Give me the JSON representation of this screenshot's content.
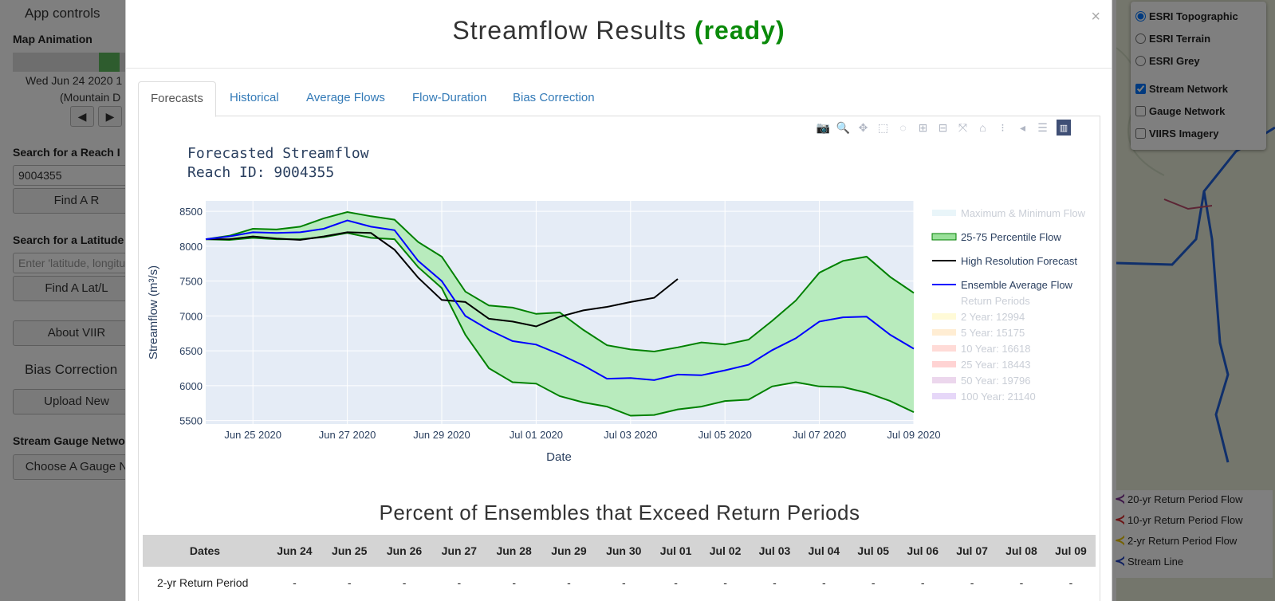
{
  "sidebar": {
    "app_controls": "App controls",
    "map_animation": "Map Animation",
    "anim_date": "Wed Jun 24 2020 1",
    "anim_tz": "(Mountain D",
    "search_reach_heading": "Search for a Reach I",
    "reach_value": "9004355",
    "find_reach_btn": "Find A R",
    "search_latlon_heading": "Search for a Latitude",
    "latlon_placeholder": "Enter 'latitude, longitu",
    "find_latlon_btn": "Find A Lat/L",
    "about_btn": "About VIIR",
    "bias_heading": "Bias Correction",
    "upload_btn": "Upload New",
    "gauge_heading": "Stream Gauge Netwo",
    "choose_gauge_btn": "Choose A Gauge N"
  },
  "layers": {
    "items": [
      {
        "label": "ESRI Topographic",
        "type": "radio",
        "checked": true
      },
      {
        "label": "ESRI Terrain",
        "type": "radio",
        "checked": false
      },
      {
        "label": "ESRI Grey",
        "type": "radio",
        "checked": false
      },
      {
        "label": "Stream Network",
        "type": "checkbox",
        "checked": true
      },
      {
        "label": "Gauge Network",
        "type": "checkbox",
        "checked": false
      },
      {
        "label": "VIIRS Imagery",
        "type": "checkbox",
        "checked": false
      }
    ]
  },
  "map_legend": {
    "items": [
      {
        "label": "20-yr Return Period Flow",
        "color": "#7b2c8f"
      },
      {
        "label": "10-yr Return Period Flow",
        "color": "#d62728"
      },
      {
        "label": "2-yr Return Period Flow",
        "color": "#e8c300"
      },
      {
        "label": "Stream Line",
        "color": "#1f3fbf"
      }
    ]
  },
  "modal": {
    "title": "Streamflow Results",
    "status": "(ready)",
    "close": "×",
    "tabs": [
      "Forecasts",
      "Historical",
      "Average Flows",
      "Flow-Duration",
      "Bias Correction"
    ],
    "active_tab": 0
  },
  "modebar_icons": [
    "camera-icon",
    "zoom-icon",
    "pan-icon",
    "box-select-icon",
    "lasso-icon",
    "zoom-in-icon",
    "zoom-out-icon",
    "autoscale-icon",
    "reset-axes-icon",
    "spike-lines-icon",
    "hover-closest-icon",
    "hover-compare-icon",
    "plotly-logo-icon"
  ],
  "chart_data": {
    "type": "area",
    "title": "Forecasted Streamflow",
    "subtitle": "Reach ID: 9004355",
    "xlabel": "Date",
    "ylabel": "Streamflow (m³/s)",
    "ylim": [
      5450,
      8650
    ],
    "xlim": [
      "2020-06-24T00:00",
      "2020-07-09T00:00"
    ],
    "x_tick_labels": [
      "Jun 25 2020",
      "Jun 27 2020",
      "Jun 29 2020",
      "Jul 01 2020",
      "Jul 03 2020",
      "Jul 05 2020",
      "Jul 07 2020",
      "Jul 09 2020"
    ],
    "y_ticks": [
      5500,
      6000,
      6500,
      7000,
      7500,
      8000,
      8500
    ],
    "grid": true,
    "legend_position": "right",
    "series": [
      {
        "name": "25-75 Percentile Flow",
        "color": "#008000",
        "fill": "#b8ebbd",
        "x": [
          "2020-06-24T00:00",
          "2020-06-24T12:00",
          "2020-06-25T00:00",
          "2020-06-25T12:00",
          "2020-06-26T00:00",
          "2020-06-26T12:00",
          "2020-06-27T00:00",
          "2020-06-27T12:00",
          "2020-06-28T00:00",
          "2020-06-28T12:00",
          "2020-06-29T00:00",
          "2020-06-29T12:00",
          "2020-06-30T00:00",
          "2020-06-30T12:00",
          "2020-07-01T00:00",
          "2020-07-01T12:00",
          "2020-07-02T00:00",
          "2020-07-02T12:00",
          "2020-07-03T00:00",
          "2020-07-03T12:00",
          "2020-07-04T00:00",
          "2020-07-04T12:00",
          "2020-07-05T00:00",
          "2020-07-05T12:00",
          "2020-07-06T00:00",
          "2020-07-06T12:00",
          "2020-07-07T00:00",
          "2020-07-07T12:00",
          "2020-07-08T00:00",
          "2020-07-08T12:00",
          "2020-07-09T00:00"
        ],
        "upper": [
          8100,
          8150,
          8250,
          8240,
          8280,
          8400,
          8490,
          8430,
          8380,
          8060,
          7850,
          7350,
          7150,
          7120,
          7030,
          7050,
          6800,
          6580,
          6520,
          6490,
          6550,
          6620,
          6590,
          6660,
          6930,
          7220,
          7620,
          7790,
          7850,
          7560,
          7330
        ],
        "lower": [
          8100,
          8090,
          8120,
          8100,
          8100,
          8130,
          8190,
          8120,
          8100,
          7700,
          7400,
          6730,
          6250,
          6050,
          6030,
          5850,
          5760,
          5700,
          5570,
          5580,
          5660,
          5700,
          5780,
          5800,
          5990,
          6050,
          5990,
          5980,
          5900,
          5780,
          5620
        ]
      },
      {
        "name": "High Resolution Forecast",
        "color": "#000000",
        "x": [
          "2020-06-24T00:00",
          "2020-06-24T12:00",
          "2020-06-25T00:00",
          "2020-06-25T12:00",
          "2020-06-26T00:00",
          "2020-06-26T12:00",
          "2020-06-27T00:00",
          "2020-06-27T12:00",
          "2020-06-28T00:00",
          "2020-06-28T12:00",
          "2020-06-29T00:00",
          "2020-06-29T12:00",
          "2020-06-30T00:00",
          "2020-06-30T12:00",
          "2020-07-01T00:00",
          "2020-07-01T12:00",
          "2020-07-02T00:00",
          "2020-07-02T12:00",
          "2020-07-03T00:00",
          "2020-07-03T12:00",
          "2020-07-04T00:00"
        ],
        "values": [
          8100,
          8100,
          8140,
          8110,
          8090,
          8140,
          8200,
          8190,
          7950,
          7550,
          7230,
          7200,
          6960,
          6920,
          6850,
          6990,
          7080,
          7130,
          7200,
          7260,
          7530
        ]
      },
      {
        "name": "Ensemble Average Flow",
        "color": "#0000ff",
        "x": [
          "2020-06-24T00:00",
          "2020-06-24T12:00",
          "2020-06-25T00:00",
          "2020-06-25T12:00",
          "2020-06-26T00:00",
          "2020-06-26T12:00",
          "2020-06-27T00:00",
          "2020-06-27T12:00",
          "2020-06-28T00:00",
          "2020-06-28T12:00",
          "2020-06-29T00:00",
          "2020-06-29T12:00",
          "2020-06-30T00:00",
          "2020-06-30T12:00",
          "2020-07-01T00:00",
          "2020-07-01T12:00",
          "2020-07-02T00:00",
          "2020-07-02T12:00",
          "2020-07-03T00:00",
          "2020-07-03T12:00",
          "2020-07-04T00:00",
          "2020-07-04T12:00",
          "2020-07-05T00:00",
          "2020-07-05T12:00",
          "2020-07-06T00:00",
          "2020-07-06T12:00",
          "2020-07-07T00:00",
          "2020-07-07T12:00",
          "2020-07-08T00:00",
          "2020-07-08T12:00",
          "2020-07-09T00:00"
        ],
        "values": [
          8100,
          8140,
          8200,
          8190,
          8200,
          8250,
          8370,
          8280,
          8230,
          7790,
          7500,
          7000,
          6800,
          6640,
          6590,
          6450,
          6290,
          6100,
          6110,
          6080,
          6160,
          6150,
          6220,
          6300,
          6510,
          6680,
          6920,
          6980,
          6990,
          6730,
          6530
        ]
      }
    ],
    "legend": [
      {
        "name": "Maximum & Minimum Flow",
        "color": "#cfeaf3",
        "kind": "area",
        "faded": true
      },
      {
        "name": "25-75 Percentile Flow",
        "color": "#99e099",
        "kind": "area",
        "faded": false
      },
      {
        "name": "High Resolution Forecast",
        "color": "#000000",
        "kind": "line",
        "faded": false
      },
      {
        "name": "Ensemble Average Flow",
        "color": "#0000ff",
        "kind": "line",
        "faded": false
      },
      {
        "name": "Return Periods",
        "color": "",
        "kind": "header",
        "faded": true
      },
      {
        "name": "2 Year: 12994",
        "color": "#fff4a8",
        "kind": "area",
        "faded": true
      },
      {
        "name": "5 Year: 15175",
        "color": "#ffd8a0",
        "kind": "area",
        "faded": true
      },
      {
        "name": "10 Year: 16618",
        "color": "#ffb0a8",
        "kind": "area",
        "faded": true
      },
      {
        "name": "25 Year: 18443",
        "color": "#ff9ea0",
        "kind": "area",
        "faded": true
      },
      {
        "name": "50 Year: 19796",
        "color": "#d6a8d8",
        "kind": "area",
        "faded": true
      },
      {
        "name": "100 Year: 21140",
        "color": "#c9a8f0",
        "kind": "area",
        "faded": true
      }
    ]
  },
  "exceed_table": {
    "title": "Percent of Ensembles that Exceed Return Periods",
    "headers": [
      "Dates",
      "Jun 24",
      "Jun 25",
      "Jun 26",
      "Jun 27",
      "Jun 28",
      "Jun 29",
      "Jun 30",
      "Jul 01",
      "Jul 02",
      "Jul 03",
      "Jul 04",
      "Jul 05",
      "Jul 06",
      "Jul 07",
      "Jul 08",
      "Jul 09"
    ],
    "rows": [
      {
        "label": "2-yr Return Period",
        "values": [
          "-",
          "-",
          "-",
          "-",
          "-",
          "-",
          "-",
          "-",
          "-",
          "-",
          "-",
          "-",
          "-",
          "-",
          "-",
          "-"
        ]
      }
    ]
  }
}
